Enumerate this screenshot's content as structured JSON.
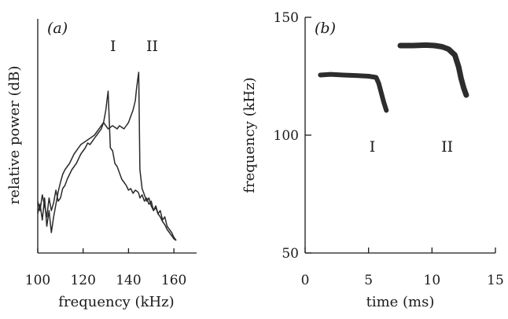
{
  "chart_data": [
    {
      "type": "line",
      "panel_label": "(a)",
      "xlabel": "frequency (kHz)",
      "ylabel": "relative power (dB)",
      "xlim": [
        100,
        170
      ],
      "xticks": [
        100,
        120,
        140,
        160
      ],
      "y_tick_labels": "none",
      "annotations": [
        {
          "text": "I",
          "x": 131
        },
        {
          "text": "II",
          "x": 145
        }
      ],
      "series": [
        {
          "x": [
            100,
            101,
            102,
            103,
            104,
            105,
            106,
            107,
            108,
            109,
            110,
            111,
            112,
            113,
            114,
            115,
            116,
            117,
            118,
            119,
            120,
            121,
            122,
            123,
            124,
            125,
            126,
            127,
            128,
            129,
            130,
            130.5,
            131,
            131.5,
            132,
            133,
            134,
            135,
            136,
            137,
            138,
            139,
            140,
            141,
            142,
            143,
            144,
            144.5,
            145,
            146,
            147,
            148,
            149,
            150,
            151,
            152,
            153,
            154,
            155,
            156,
            157,
            158,
            159,
            160,
            161
          ],
          "values": [
            0.28,
            0.22,
            0.32,
            0.25,
            0.18,
            0.3,
            0.22,
            0.27,
            0.35,
            0.28,
            0.3,
            0.36,
            0.38,
            0.42,
            0.45,
            0.48,
            0.5,
            0.52,
            0.55,
            0.58,
            0.6,
            0.62,
            0.65,
            0.64,
            0.66,
            0.68,
            0.7,
            0.72,
            0.74,
            0.78,
            0.86,
            0.92,
            0.98,
            0.8,
            0.62,
            0.6,
            0.52,
            0.5,
            0.46,
            0.42,
            0.4,
            0.38,
            0.35,
            0.36,
            0.33,
            0.35,
            0.34,
            0.33,
            0.3,
            0.32,
            0.28,
            0.3,
            0.26,
            0.28,
            0.22,
            0.25,
            0.2,
            0.22,
            0.16,
            0.18,
            0.12,
            0.1,
            0.08,
            0.05,
            0.03
          ]
        },
        {
          "x": [
            100,
            101,
            102,
            103,
            104,
            105,
            106,
            107,
            108,
            109,
            110,
            111,
            112,
            113,
            114,
            115,
            116,
            117,
            118,
            119,
            120,
            121,
            122,
            123,
            124,
            125,
            126,
            127,
            128,
            129,
            130,
            131,
            132,
            133,
            134,
            135,
            136,
            137,
            138,
            139,
            140,
            141,
            142,
            143,
            143.5,
            144,
            144.5,
            145,
            146,
            147,
            148,
            149,
            150,
            151,
            152,
            153,
            154,
            155,
            156,
            157,
            158,
            159,
            160,
            161
          ],
          "values": [
            0.2,
            0.26,
            0.16,
            0.3,
            0.12,
            0.22,
            0.08,
            0.18,
            0.26,
            0.34,
            0.4,
            0.45,
            0.48,
            0.5,
            0.52,
            0.55,
            0.58,
            0.6,
            0.62,
            0.64,
            0.65,
            0.66,
            0.67,
            0.68,
            0.69,
            0.7,
            0.72,
            0.74,
            0.76,
            0.78,
            0.76,
            0.74,
            0.75,
            0.76,
            0.75,
            0.74,
            0.76,
            0.75,
            0.74,
            0.76,
            0.78,
            0.82,
            0.86,
            0.92,
            0.99,
            1.05,
            1.1,
            0.48,
            0.36,
            0.32,
            0.28,
            0.3,
            0.25,
            0.22,
            0.24,
            0.2,
            0.18,
            0.15,
            0.13,
            0.1,
            0.08,
            0.06,
            0.04,
            0.03
          ]
        }
      ]
    },
    {
      "type": "scatter",
      "panel_label": "(b)",
      "xlabel": "time (ms)",
      "ylabel": "frequency (kHz)",
      "xlim": [
        0,
        15
      ],
      "ylim": [
        50,
        150
      ],
      "xticks": [
        0,
        5,
        10,
        15
      ],
      "yticks": [
        50,
        100,
        150
      ],
      "annotations": [
        {
          "text": "I",
          "x": 5.3,
          "y": 97
        },
        {
          "text": "II",
          "x": 11.2,
          "y": 97
        }
      ],
      "series": [
        {
          "name": "I",
          "x": [
            1.2,
            2.0,
            3.0,
            4.0,
            5.0,
            5.6,
            5.8,
            6.0,
            6.2,
            6.4
          ],
          "values": [
            125.5,
            125.8,
            125.5,
            125.3,
            125.0,
            124.5,
            122.0,
            118.0,
            114.0,
            110.5
          ]
        },
        {
          "name": "II",
          "x": [
            7.5,
            8.5,
            9.5,
            10.2,
            10.8,
            11.3,
            11.8,
            12.1,
            12.3,
            12.5,
            12.7
          ],
          "values": [
            138.0,
            138.0,
            138.2,
            138.0,
            137.5,
            136.5,
            134.0,
            129.0,
            124.0,
            120.0,
            117.0
          ]
        }
      ]
    }
  ]
}
